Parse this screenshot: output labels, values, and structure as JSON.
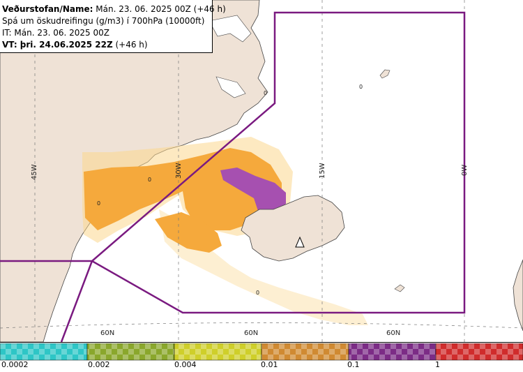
{
  "header": {
    "line1_bold": "Veðurstofan/Name:",
    "line1_rest": " Mán. 23. 06. 2025 00Z (+46 h)",
    "line2": "Spá um öskudreifingu (g/m3) í 700hPa (10000ft)",
    "line3": "IT: Mán. 23. 06. 2025 00Z",
    "line4_bold": "VT: þri. 24.06.2025 22Z",
    "line4_rest": " (+46 h)"
  },
  "grid_labels": {
    "lon_45w": "45W",
    "lon_30w": "30W",
    "lon_15w": "15W",
    "lon_0w": "0W",
    "lat_60n_a": "60N",
    "lat_60n_b": "60N",
    "lat_60n_c": "60N"
  },
  "contour_labels": [
    "0",
    "0",
    "0",
    "0",
    "0"
  ],
  "legend": {
    "colors": [
      "#2ec6c6",
      "#8aa72c",
      "#cfcf2a",
      "#d08a32",
      "#7c2c86",
      "#d02c2c"
    ],
    "labels": [
      "0.0002",
      "0.002",
      "0.004",
      "0.01",
      "0.1",
      "1"
    ]
  },
  "colors": {
    "land": "#efe2d6",
    "sea": "#ffffff",
    "boundary": "#7a1a80",
    "ash_light": "#fbd78e",
    "ash_orange": "#f5a93c",
    "ash_purple": "#a650b0"
  }
}
